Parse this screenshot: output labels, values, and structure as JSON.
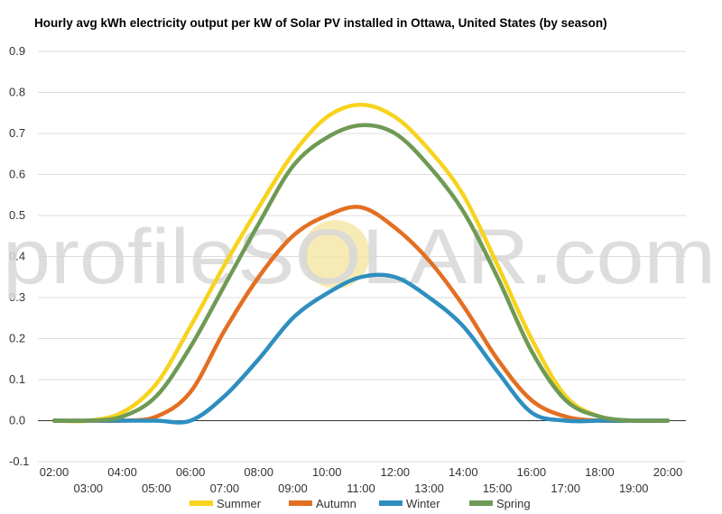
{
  "watermark": "profileSOLAR.com",
  "chart_data": {
    "type": "line",
    "title": "Hourly avg kWh electricity output per kW of Solar PV installed in Ottawa, United States (by season)",
    "xlabel": "",
    "ylabel": "",
    "x": [
      "02:00",
      "03:00",
      "04:00",
      "05:00",
      "06:00",
      "07:00",
      "08:00",
      "09:00",
      "10:00",
      "11:00",
      "12:00",
      "13:00",
      "14:00",
      "15:00",
      "16:00",
      "17:00",
      "18:00",
      "19:00",
      "20:00"
    ],
    "ylim": [
      -0.1,
      0.9
    ],
    "yticks": [
      "-0.1",
      "0.0",
      "0.1",
      "0.2",
      "0.3",
      "0.4",
      "0.5",
      "0.6",
      "0.7",
      "0.8",
      "0.9"
    ],
    "grid": true,
    "legend_position": "bottom",
    "series": [
      {
        "name": "Summer",
        "color": "#f7d31e",
        "values": [
          0.0,
          0.0,
          0.02,
          0.09,
          0.23,
          0.38,
          0.52,
          0.65,
          0.74,
          0.77,
          0.74,
          0.66,
          0.55,
          0.38,
          0.2,
          0.06,
          0.01,
          0.0,
          0.0
        ]
      },
      {
        "name": "Autumn",
        "color": "#e36f22",
        "values": [
          0.0,
          0.0,
          0.0,
          0.01,
          0.07,
          0.22,
          0.35,
          0.45,
          0.5,
          0.52,
          0.47,
          0.39,
          0.28,
          0.15,
          0.05,
          0.01,
          0.0,
          0.0,
          0.0
        ]
      },
      {
        "name": "Winter",
        "color": "#2e8fbf",
        "values": [
          0.0,
          0.0,
          0.0,
          0.0,
          0.0,
          0.06,
          0.15,
          0.25,
          0.31,
          0.35,
          0.35,
          0.3,
          0.23,
          0.12,
          0.02,
          0.0,
          0.0,
          0.0,
          0.0
        ]
      },
      {
        "name": "Spring",
        "color": "#6f9a55",
        "values": [
          0.0,
          0.0,
          0.01,
          0.06,
          0.18,
          0.33,
          0.48,
          0.62,
          0.69,
          0.72,
          0.7,
          0.62,
          0.51,
          0.35,
          0.17,
          0.05,
          0.01,
          0.0,
          0.0
        ]
      }
    ]
  }
}
